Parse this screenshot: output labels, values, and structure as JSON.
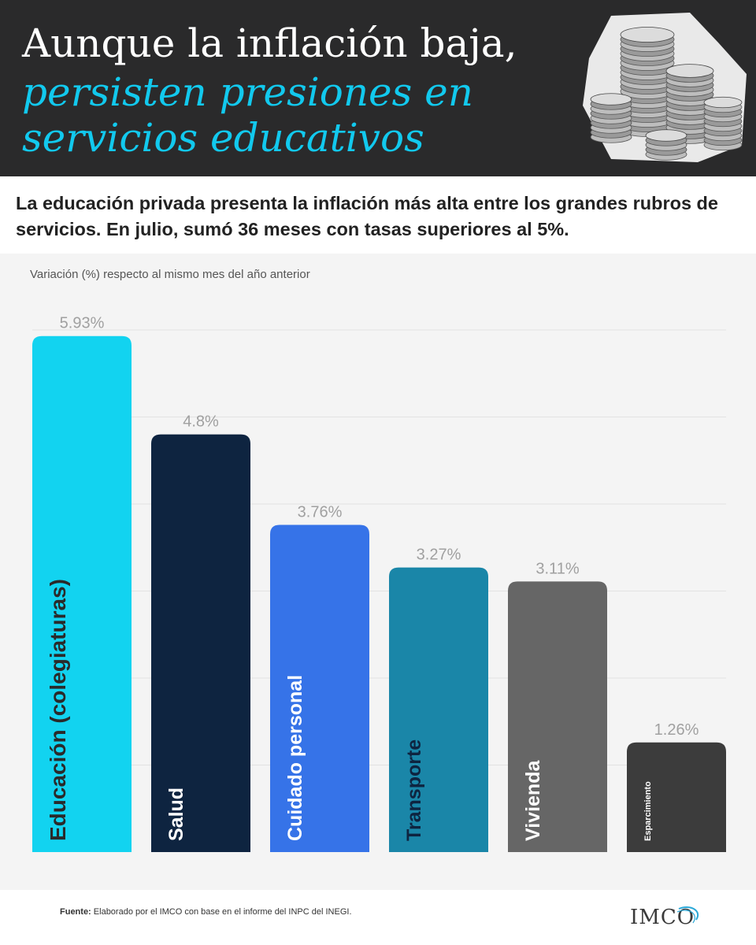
{
  "header": {
    "title_line1": "Aunque la inflación baja,",
    "title_line2": "persisten presiones en",
    "title_line3": "servicios educativos"
  },
  "subtitle": "La educación privada presenta la inflación más alta entre los grandes rubros de servicios. En julio, sumó 36 meses con tasas superiores al 5%.",
  "chart_data": {
    "type": "bar",
    "title": "",
    "ylabel": "Variación (%) respecto al mismo mes del año anterior",
    "xlabel": "",
    "categories": [
      "Educación (colegiaturas)",
      "Salud",
      "Cuidado personal",
      "Transporte",
      "Vivienda",
      "Esparcimiento"
    ],
    "values": [
      5.93,
      4.8,
      3.76,
      3.27,
      3.11,
      1.26
    ],
    "value_labels": [
      "5.93%",
      "4.8%",
      "3.76%",
      "3.27%",
      "3.11%",
      "1.26%"
    ],
    "ylim": [
      0,
      6
    ],
    "grid": true,
    "colors": [
      "#12d3f0",
      "#0e2440",
      "#3673e8",
      "#1a86a8",
      "#666666",
      "#3c3c3c"
    ],
    "label_colors": [
      "#2a2a2a",
      "#ffffff",
      "#ffffff",
      "#0e2440",
      "#ffffff",
      "#ffffff"
    ]
  },
  "footer": {
    "source_label": "Fuente:",
    "source_text": " Elaborado por el IMCO con base en el informe del INPC del INEGI.",
    "logo_text": "IMCO"
  },
  "colors": {
    "header_bg": "#2a2a2b",
    "accent": "#12c9ee",
    "chart_bg": "#f4f4f4",
    "value_label": "#a0a0a0"
  }
}
